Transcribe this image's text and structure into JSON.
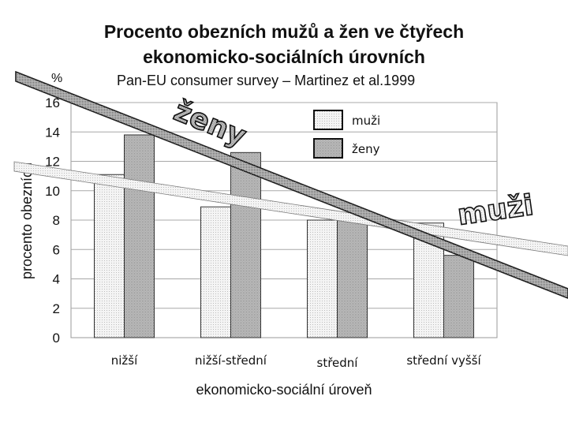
{
  "chart_data": {
    "type": "bar",
    "title": "Procento obezních mužů a žen ve čtyřech",
    "title_line2": "ekonomicko-sociálních úrovních",
    "subtitle": "Pan-EU consumer survey – Martinez et al.1999",
    "unit_label": "%",
    "ylabel": "procento obezních",
    "xlabel": "ekonomicko-sociální úroveň",
    "categories": [
      "nižší",
      "nižší-střední",
      "střední",
      "střední vyšší"
    ],
    "series": [
      {
        "name": "muži",
        "values": [
          11.1,
          8.9,
          8.0,
          7.8
        ]
      },
      {
        "name": "ženy",
        "values": [
          13.8,
          12.6,
          8.0,
          5.6
        ]
      }
    ],
    "ylim": [
      0,
      16
    ],
    "yticks": [
      0,
      2,
      4,
      6,
      8,
      10,
      12,
      14,
      16
    ],
    "grid": true,
    "legend_position": "top-right",
    "annotations": {
      "zeny_label": "ženy",
      "muzi_label": "muži"
    },
    "colors": {
      "muzi_fill": "#f2f2f2",
      "zeny_fill": "#c8c8c8",
      "background": "#ffffff"
    }
  }
}
